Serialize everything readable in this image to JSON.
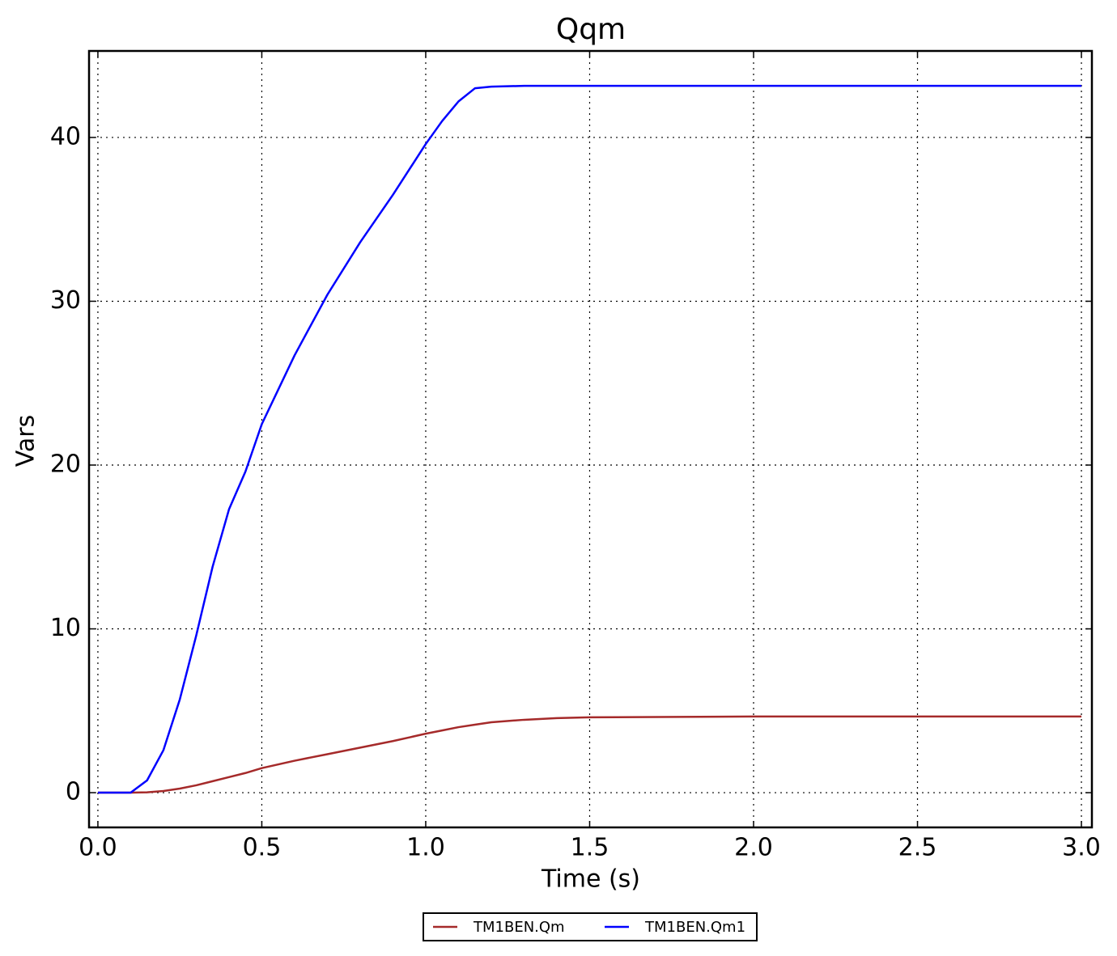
{
  "chart_data": {
    "type": "line",
    "title": "Qqm",
    "xlabel": "Time (s)",
    "ylabel": "Vars",
    "x": [
      0,
      0.1,
      0.15,
      0.2,
      0.25,
      0.3,
      0.35,
      0.4,
      0.45,
      0.5,
      0.6,
      0.7,
      0.8,
      0.9,
      1.0,
      1.05,
      1.1,
      1.15,
      1.2,
      1.3,
      1.4,
      1.5,
      2.0,
      2.5,
      3.0
    ],
    "series": [
      {
        "name": "TM1BEN.Qm",
        "color": "#a52a2a",
        "values": [
          0,
          0,
          0.02,
          0.1,
          0.25,
          0.45,
          0.7,
          0.95,
          1.2,
          1.5,
          1.95,
          2.35,
          2.75,
          3.15,
          3.6,
          3.8,
          4.0,
          4.15,
          4.3,
          4.45,
          4.55,
          4.6,
          4.65,
          4.65,
          4.65
        ]
      },
      {
        "name": "TM1BEN.Qm1",
        "color": "#0000ff",
        "values": [
          0,
          0,
          0.75,
          2.6,
          5.7,
          9.6,
          13.8,
          17.3,
          19.6,
          22.5,
          26.7,
          30.4,
          33.6,
          36.5,
          39.6,
          41.0,
          42.2,
          43.0,
          43.1,
          43.15,
          43.15,
          43.15,
          43.15,
          43.15,
          43.15
        ]
      }
    ],
    "xlim": [
      -0.027,
      3.032
    ],
    "ylim": [
      -2.12,
      45.28
    ],
    "xticks": [
      {
        "value": 0,
        "label": "0.0"
      },
      0.5,
      {
        "value": 1,
        "label": "1.0"
      },
      1.5,
      {
        "value": 2,
        "label": "2.0"
      },
      2.5,
      {
        "value": 3,
        "label": "3.0"
      }
    ],
    "yticks": [
      0,
      10,
      20,
      30,
      40
    ],
    "grid": true,
    "legend": "bottom"
  }
}
